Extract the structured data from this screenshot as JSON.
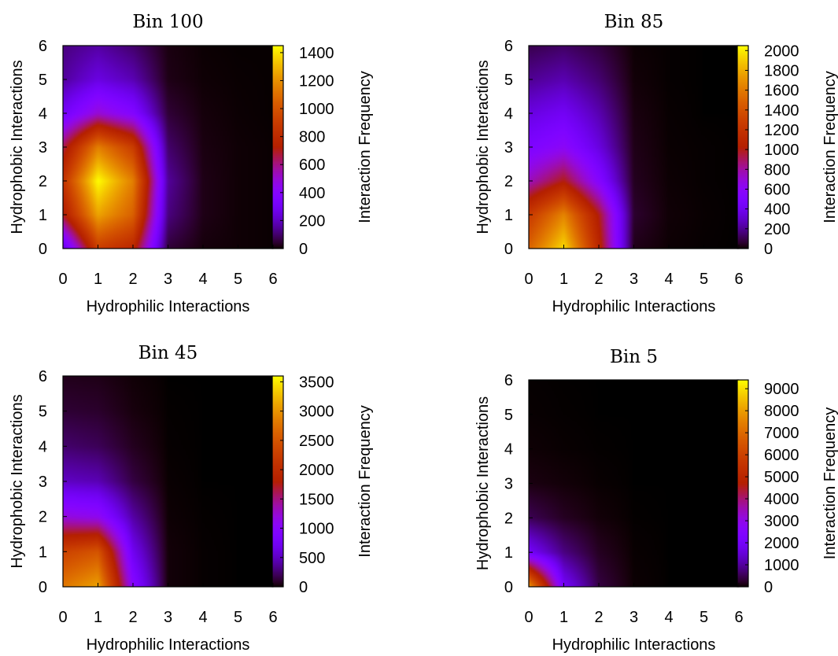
{
  "chart_data": [
    {
      "type": "heatmap",
      "title": "Bin 100",
      "xlabel": "Hydrophilic Interactions",
      "ylabel": "Hydrophobic Interactions",
      "colorbar_label": "Interaction Frequency",
      "xlim": [
        0,
        6
      ],
      "ylim": [
        0,
        6
      ],
      "xticks": [
        "0",
        "1",
        "2",
        "3",
        "4",
        "5",
        "6"
      ],
      "yticks": [
        "0",
        "1",
        "2",
        "3",
        "4",
        "5",
        "6"
      ],
      "cbar_range": [
        0,
        1450
      ],
      "cbar_ticks": [
        "0",
        "200",
        "400",
        "600",
        "800",
        "1000",
        "1200",
        "1400"
      ],
      "x": [
        0,
        1,
        2,
        3,
        4,
        5,
        6
      ],
      "y": [
        0,
        1,
        2,
        3,
        4,
        5,
        6
      ],
      "z": [
        [
          220,
          900,
          780,
          50,
          10,
          5,
          2
        ],
        [
          700,
          1250,
          1050,
          120,
          20,
          5,
          2
        ],
        [
          850,
          1450,
          1150,
          150,
          20,
          5,
          2
        ],
        [
          650,
          1150,
          900,
          100,
          15,
          5,
          2
        ],
        [
          300,
          500,
          380,
          50,
          10,
          3,
          1
        ],
        [
          150,
          250,
          180,
          20,
          5,
          2,
          1
        ],
        [
          120,
          160,
          100,
          15,
          3,
          1,
          1
        ]
      ]
    },
    {
      "type": "heatmap",
      "title": "Bin 85",
      "xlabel": "Hydrophilic Interactions",
      "ylabel": "Hydrophobic Interactions",
      "colorbar_label": "Interaction Frequency",
      "xlim": [
        0,
        6
      ],
      "ylim": [
        0,
        6
      ],
      "xticks": [
        "0",
        "1",
        "2",
        "3",
        "4",
        "5",
        "6"
      ],
      "yticks": [
        "0",
        "1",
        "2",
        "3",
        "4",
        "5",
        "6"
      ],
      "cbar_range": [
        0,
        2050
      ],
      "cbar_ticks": [
        "0",
        "200",
        "400",
        "600",
        "800",
        "1000",
        "1200",
        "1400",
        "1600",
        "1800",
        "2000"
      ],
      "x": [
        0,
        1,
        2,
        3,
        4,
        5,
        6
      ],
      "y": [
        0,
        1,
        2,
        3,
        4,
        5,
        6
      ],
      "z": [
        [
          1500,
          1950,
          1100,
          30,
          5,
          1,
          0
        ],
        [
          1250,
          1650,
          1000,
          60,
          8,
          2,
          0
        ],
        [
          750,
          1000,
          550,
          40,
          5,
          1,
          0
        ],
        [
          500,
          600,
          350,
          30,
          3,
          1,
          0
        ],
        [
          350,
          420,
          250,
          20,
          2,
          0,
          0
        ],
        [
          200,
          250,
          150,
          10,
          1,
          0,
          0
        ],
        [
          100,
          130,
          80,
          5,
          1,
          0,
          0
        ]
      ]
    },
    {
      "type": "heatmap",
      "title": "Bin 45",
      "xlabel": "Hydrophilic Interactions",
      "ylabel": "Hydrophobic Interactions",
      "colorbar_label": "Interaction Frequency",
      "xlim": [
        0,
        6
      ],
      "ylim": [
        0,
        6
      ],
      "xticks": [
        "0",
        "1",
        "2",
        "3",
        "4",
        "5",
        "6"
      ],
      "yticks": [
        "0",
        "1",
        "2",
        "3",
        "4",
        "5",
        "6"
      ],
      "cbar_range": [
        0,
        3600
      ],
      "cbar_ticks": [
        "0",
        "500",
        "1000",
        "1500",
        "2000",
        "2500",
        "3000",
        "3500"
      ],
      "x": [
        0,
        1,
        2,
        3,
        4,
        5,
        6
      ],
      "y": [
        0,
        1,
        2,
        3,
        4,
        5,
        6
      ],
      "z": [
        [
          2800,
          3100,
          1000,
          20,
          2,
          0,
          0
        ],
        [
          2300,
          2500,
          700,
          20,
          2,
          0,
          0
        ],
        [
          1200,
          1100,
          400,
          10,
          1,
          0,
          0
        ],
        [
          500,
          450,
          150,
          5,
          0,
          0,
          0
        ],
        [
          250,
          200,
          70,
          2,
          0,
          0,
          0
        ],
        [
          120,
          100,
          30,
          1,
          0,
          0,
          0
        ],
        [
          60,
          50,
          15,
          0,
          0,
          0,
          0
        ]
      ]
    },
    {
      "type": "heatmap",
      "title": "Bin 5",
      "xlabel": "Hydrophilic Interactions",
      "ylabel": "Hydrophobic Interactions",
      "colorbar_label": "Interaction Frequency",
      "xlim": [
        0,
        6
      ],
      "ylim": [
        0,
        6
      ],
      "xticks": [
        "0",
        "1",
        "2",
        "3",
        "4",
        "5",
        "6"
      ],
      "yticks": [
        "0",
        "1",
        "2",
        "3",
        "4",
        "5",
        "6"
      ],
      "cbar_range": [
        0,
        9400
      ],
      "cbar_ticks": [
        "0",
        "1000",
        "2000",
        "3000",
        "4000",
        "5000",
        "6000",
        "7000",
        "8000",
        "9000"
      ],
      "x": [
        0,
        1,
        2,
        3,
        4,
        5,
        6
      ],
      "y": [
        0,
        1,
        2,
        3,
        4,
        5,
        6
      ],
      "z": [
        [
          8000,
          2000,
          400,
          20,
          0,
          0,
          0
        ],
        [
          2000,
          800,
          200,
          10,
          0,
          0,
          0
        ],
        [
          500,
          200,
          50,
          2,
          0,
          0,
          0
        ],
        [
          100,
          50,
          10,
          0,
          0,
          0,
          0
        ],
        [
          30,
          10,
          2,
          0,
          0,
          0,
          0
        ],
        [
          10,
          3,
          0,
          0,
          0,
          0,
          0
        ],
        [
          5,
          1,
          0,
          0,
          0,
          0,
          0
        ]
      ]
    }
  ]
}
